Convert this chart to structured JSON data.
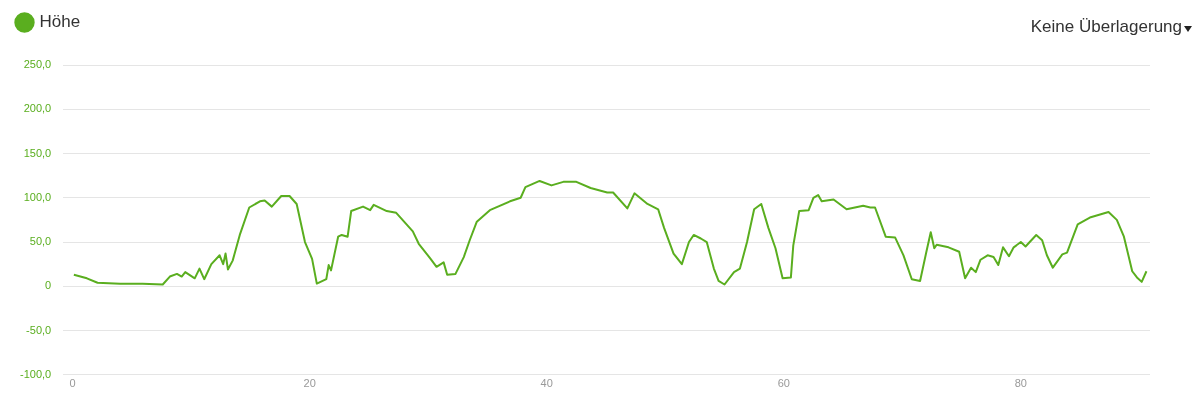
{
  "chart_data": {
    "type": "line",
    "xlim": [
      -0.8,
      90.9
    ],
    "xticks": [
      0,
      20,
      40,
      60,
      80
    ],
    "ylim": [
      -100,
      250
    ],
    "yticks": [
      {
        "value": -100,
        "label": "-100,0"
      },
      {
        "value": -50,
        "label": "-50,0"
      },
      0,
      {
        "value": 50,
        "label": "50,0"
      },
      {
        "value": 100,
        "label": "100,0"
      },
      {
        "value": 150,
        "label": "150,0"
      },
      {
        "value": 200,
        "label": "200,0"
      },
      {
        "value": 250,
        "label": "250,0"
      }
    ],
    "grid": "y",
    "legend": "top left",
    "marker": "none",
    "line_style": "solid",
    "annotations": [
      "Keine Überlagerung"
    ],
    "series": [
      {
        "name": "Höhe",
        "color": "#5aae1f",
        "x": [
          0.1,
          1.2,
          2.1,
          4.0,
          5.9,
          7.6,
          8.2,
          8.8,
          9.2,
          9.5,
          10.3,
          10.7,
          11.1,
          11.7,
          12.4,
          12.7,
          12.9,
          13.1,
          13.5,
          14.1,
          14.9,
          15.8,
          16.2,
          16.8,
          17.6,
          18.3,
          18.9,
          19.6,
          20.2,
          20.6,
          21.4,
          21.6,
          21.8,
          22.4,
          22.7,
          23.2,
          23.5,
          24.5,
          25.1,
          25.4,
          26.5,
          27.3,
          28.7,
          29.2,
          30.2,
          30.7,
          31.3,
          31.6,
          32.3,
          33.0,
          33.5,
          34.1,
          35.2,
          36.9,
          37.8,
          38.2,
          39.4,
          40.4,
          41.4,
          42.5,
          43.7,
          45.1,
          45.6,
          46.8,
          47.4,
          48.5,
          49.4,
          49.9,
          50.7,
          51.4,
          52.0,
          52.4,
          53.0,
          53.5,
          54.1,
          54.5,
          55.0,
          55.8,
          56.3,
          56.9,
          57.5,
          58.1,
          58.7,
          59.3,
          59.9,
          60.6,
          60.8,
          61.3,
          62.1,
          62.5,
          62.9,
          63.2,
          64.2,
          65.3,
          66.7,
          67.3,
          67.7,
          68.6,
          69.4,
          70.1,
          70.8,
          71.5,
          72.0,
          72.4,
          72.7,
          72.9,
          73.9,
          74.8,
          75.3,
          75.8,
          76.2,
          76.6,
          77.2,
          77.7,
          78.1,
          78.5,
          79.0,
          79.4,
          80.0,
          80.4,
          81.3,
          81.8,
          82.2,
          82.7,
          83.5,
          83.9,
          84.8,
          85.9,
          87.4,
          88.1,
          88.7,
          89.4,
          89.8,
          90.2,
          90.6
        ],
        "values": [
          13,
          9,
          4,
          3,
          3,
          2,
          11,
          14,
          11,
          16,
          9,
          20,
          8,
          25,
          35,
          25,
          37,
          19,
          29,
          58,
          89,
          96,
          97,
          90,
          102,
          102,
          93,
          50,
          31,
          3,
          8,
          24,
          18,
          56,
          58,
          56,
          85,
          90,
          86,
          92,
          85,
          83,
          62,
          48,
          31,
          22,
          27,
          13,
          14,
          33,
          52,
          73,
          86,
          96,
          100,
          112,
          119,
          114,
          118,
          118,
          111,
          106,
          106,
          88,
          105,
          93,
          87,
          66,
          37,
          25,
          50,
          58,
          54,
          50,
          20,
          6,
          2,
          16,
          20,
          50,
          87,
          93,
          66,
          43,
          9,
          10,
          46,
          85,
          86,
          100,
          103,
          96,
          98,
          87,
          91,
          89,
          89,
          56,
          55,
          35,
          8,
          6,
          37,
          61,
          43,
          47,
          44,
          39,
          9,
          21,
          16,
          30,
          35,
          33,
          24,
          44,
          34,
          44,
          50,
          45,
          58,
          52,
          35,
          21,
          36,
          38,
          70,
          78,
          84,
          75,
          56,
          17,
          10,
          5,
          17
        ]
      }
    ]
  }
}
